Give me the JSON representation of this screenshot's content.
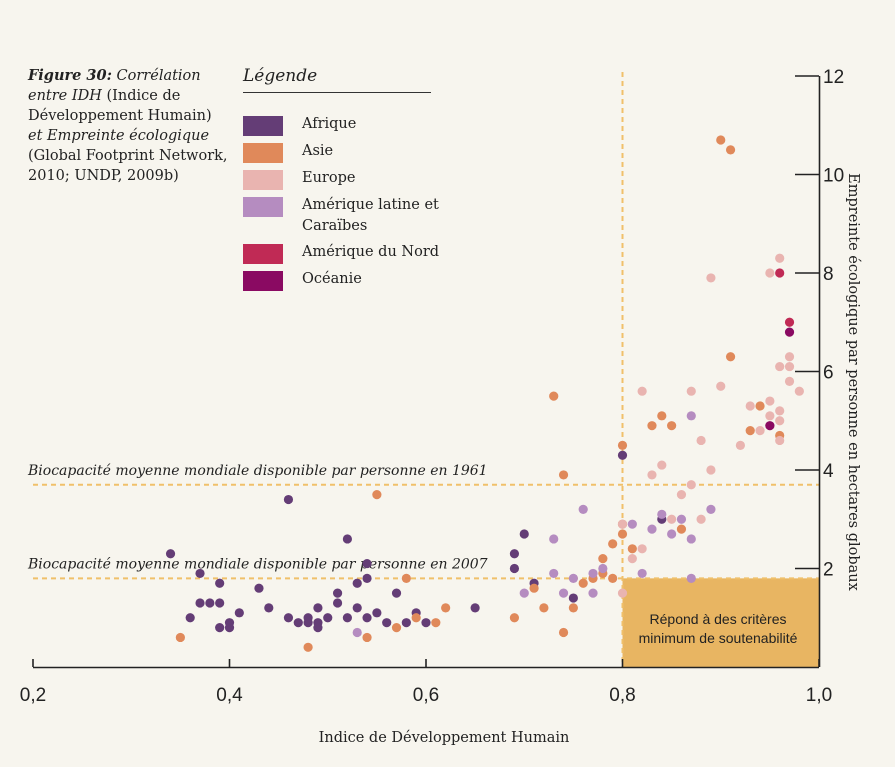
{
  "caption": {
    "lead": "Figure 30:",
    "title_italic": "Corrélation entre IDH",
    "paren": "(Indice de Développement Humain)",
    "and_italic": "et Empreinte écologique",
    "source": "(Global Footprint Network, 2010; UNDP, 2009b)"
  },
  "legend": {
    "title": "Légende",
    "items": [
      {
        "label": "Afrique",
        "color": "#643d76"
      },
      {
        "label": "Asie",
        "color": "#e0895a"
      },
      {
        "label": "Europe",
        "color": "#e9b4b0"
      },
      {
        "label": "Amérique latine et Caraïbes",
        "color": "#b58cc0"
      },
      {
        "label": "Amérique du Nord",
        "color": "#c02a55"
      },
      {
        "label": "Océanie",
        "color": "#8a0a62"
      }
    ]
  },
  "zone_label": "Répond à des critères minimum de soutenabilité",
  "chart_data": {
    "type": "scatter",
    "xlabel": "Indice de Développement Humain",
    "ylabel": "Empreinte écologique par personne en hectares globaux",
    "xlim": [
      0.2,
      1.0
    ],
    "ylim": [
      0,
      12
    ],
    "x_ticks": [
      "0,2",
      "0,4",
      "0,6",
      "0,8",
      "1,0"
    ],
    "y_ticks": [
      "2",
      "4",
      "6",
      "8",
      "10",
      "12"
    ],
    "reference_lines": [
      {
        "axis": "y",
        "value": 3.7,
        "label": "Biocapacité moyenne mondiale disponible par personne en 1961"
      },
      {
        "axis": "y",
        "value": 1.8,
        "label": "Biocapacité moyenne mondiale disponible par personne en 2007"
      },
      {
        "axis": "x",
        "value": 0.8,
        "label": ""
      }
    ],
    "highlight_region": {
      "x": [
        0.8,
        1.0
      ],
      "y": [
        0,
        1.8
      ],
      "color": "#e8b562"
    },
    "reference_line_color": "#f0c06a",
    "series": [
      {
        "name": "Afrique",
        "color": "#643d76",
        "points": [
          [
            0.34,
            2.3
          ],
          [
            0.37,
            1.9
          ],
          [
            0.37,
            1.3
          ],
          [
            0.36,
            1.0
          ],
          [
            0.38,
            1.3
          ],
          [
            0.39,
            1.7
          ],
          [
            0.39,
            0.8
          ],
          [
            0.39,
            1.3
          ],
          [
            0.4,
            0.8
          ],
          [
            0.4,
            0.9
          ],
          [
            0.41,
            1.1
          ],
          [
            0.43,
            1.6
          ],
          [
            0.44,
            1.2
          ],
          [
            0.46,
            3.4
          ],
          [
            0.46,
            1.0
          ],
          [
            0.47,
            0.9
          ],
          [
            0.48,
            0.9
          ],
          [
            0.48,
            1.0
          ],
          [
            0.49,
            0.9
          ],
          [
            0.49,
            1.2
          ],
          [
            0.49,
            0.8
          ],
          [
            0.5,
            1.0
          ],
          [
            0.51,
            1.3
          ],
          [
            0.51,
            1.5
          ],
          [
            0.52,
            2.6
          ],
          [
            0.52,
            1.0
          ],
          [
            0.53,
            1.2
          ],
          [
            0.53,
            1.7
          ],
          [
            0.54,
            1.0
          ],
          [
            0.54,
            2.1
          ],
          [
            0.54,
            1.8
          ],
          [
            0.55,
            1.1
          ],
          [
            0.56,
            0.9
          ],
          [
            0.57,
            1.5
          ],
          [
            0.58,
            0.9
          ],
          [
            0.59,
            1.1
          ],
          [
            0.6,
            0.9
          ],
          [
            0.65,
            1.2
          ],
          [
            0.69,
            2.3
          ],
          [
            0.69,
            2.0
          ],
          [
            0.7,
            2.7
          ],
          [
            0.71,
            1.7
          ],
          [
            0.75,
            1.4
          ],
          [
            0.8,
            4.3
          ],
          [
            0.84,
            3.0
          ]
        ]
      },
      {
        "name": "Asie",
        "color": "#e0895a",
        "points": [
          [
            0.35,
            0.6
          ],
          [
            0.48,
            0.4
          ],
          [
            0.54,
            0.6
          ],
          [
            0.55,
            3.5
          ],
          [
            0.57,
            0.8
          ],
          [
            0.58,
            1.8
          ],
          [
            0.59,
            1.0
          ],
          [
            0.61,
            0.9
          ],
          [
            0.62,
            1.2
          ],
          [
            0.69,
            1.0
          ],
          [
            0.71,
            1.6
          ],
          [
            0.72,
            1.2
          ],
          [
            0.73,
            5.5
          ],
          [
            0.74,
            0.7
          ],
          [
            0.74,
            3.9
          ],
          [
            0.75,
            1.2
          ],
          [
            0.76,
            1.7
          ],
          [
            0.77,
            1.8
          ],
          [
            0.78,
            2.2
          ],
          [
            0.78,
            1.9
          ],
          [
            0.79,
            2.5
          ],
          [
            0.79,
            1.8
          ],
          [
            0.8,
            4.5
          ],
          [
            0.8,
            2.9
          ],
          [
            0.8,
            2.7
          ],
          [
            0.81,
            2.4
          ],
          [
            0.83,
            4.9
          ],
          [
            0.84,
            5.1
          ],
          [
            0.85,
            4.9
          ],
          [
            0.86,
            2.8
          ],
          [
            0.9,
            10.7
          ],
          [
            0.91,
            10.5
          ],
          [
            0.91,
            6.3
          ],
          [
            0.93,
            4.8
          ],
          [
            0.94,
            5.3
          ],
          [
            0.96,
            4.7
          ]
        ]
      },
      {
        "name": "Europe",
        "color": "#e9b4b0",
        "points": [
          [
            0.8,
            1.5
          ],
          [
            0.8,
            2.9
          ],
          [
            0.81,
            2.2
          ],
          [
            0.82,
            2.4
          ],
          [
            0.82,
            5.6
          ],
          [
            0.83,
            3.9
          ],
          [
            0.84,
            4.1
          ],
          [
            0.85,
            3.0
          ],
          [
            0.86,
            3.5
          ],
          [
            0.87,
            5.6
          ],
          [
            0.87,
            3.7
          ],
          [
            0.88,
            4.6
          ],
          [
            0.88,
            3.0
          ],
          [
            0.89,
            4.0
          ],
          [
            0.89,
            7.9
          ],
          [
            0.9,
            5.7
          ],
          [
            0.92,
            4.5
          ],
          [
            0.93,
            5.3
          ],
          [
            0.94,
            4.8
          ],
          [
            0.95,
            5.1
          ],
          [
            0.95,
            4.9
          ],
          [
            0.95,
            5.4
          ],
          [
            0.95,
            8.0
          ],
          [
            0.96,
            8.3
          ],
          [
            0.96,
            5.0
          ],
          [
            0.96,
            5.2
          ],
          [
            0.96,
            4.6
          ],
          [
            0.96,
            6.1
          ],
          [
            0.97,
            6.3
          ],
          [
            0.97,
            5.8
          ],
          [
            0.97,
            6.1
          ],
          [
            0.98,
            5.6
          ]
        ]
      },
      {
        "name": "Amérique latine et Caraïbes",
        "color": "#b58cc0",
        "points": [
          [
            0.53,
            0.7
          ],
          [
            0.7,
            1.5
          ],
          [
            0.73,
            2.6
          ],
          [
            0.73,
            1.9
          ],
          [
            0.74,
            1.5
          ],
          [
            0.75,
            1.8
          ],
          [
            0.76,
            3.2
          ],
          [
            0.77,
            1.9
          ],
          [
            0.77,
            1.5
          ],
          [
            0.78,
            2.0
          ],
          [
            0.81,
            2.9
          ],
          [
            0.82,
            1.9
          ],
          [
            0.83,
            2.8
          ],
          [
            0.84,
            3.1
          ],
          [
            0.85,
            2.7
          ],
          [
            0.86,
            3.0
          ],
          [
            0.87,
            5.1
          ],
          [
            0.87,
            2.6
          ],
          [
            0.89,
            3.2
          ],
          [
            0.87,
            1.8
          ]
        ]
      },
      {
        "name": "Amérique du Nord",
        "color": "#c02a55",
        "points": [
          [
            0.96,
            8.0
          ],
          [
            0.97,
            7.0
          ]
        ]
      },
      {
        "name": "Océanie",
        "color": "#8a0a62",
        "points": [
          [
            0.97,
            6.8
          ],
          [
            0.95,
            4.9
          ]
        ]
      }
    ]
  }
}
